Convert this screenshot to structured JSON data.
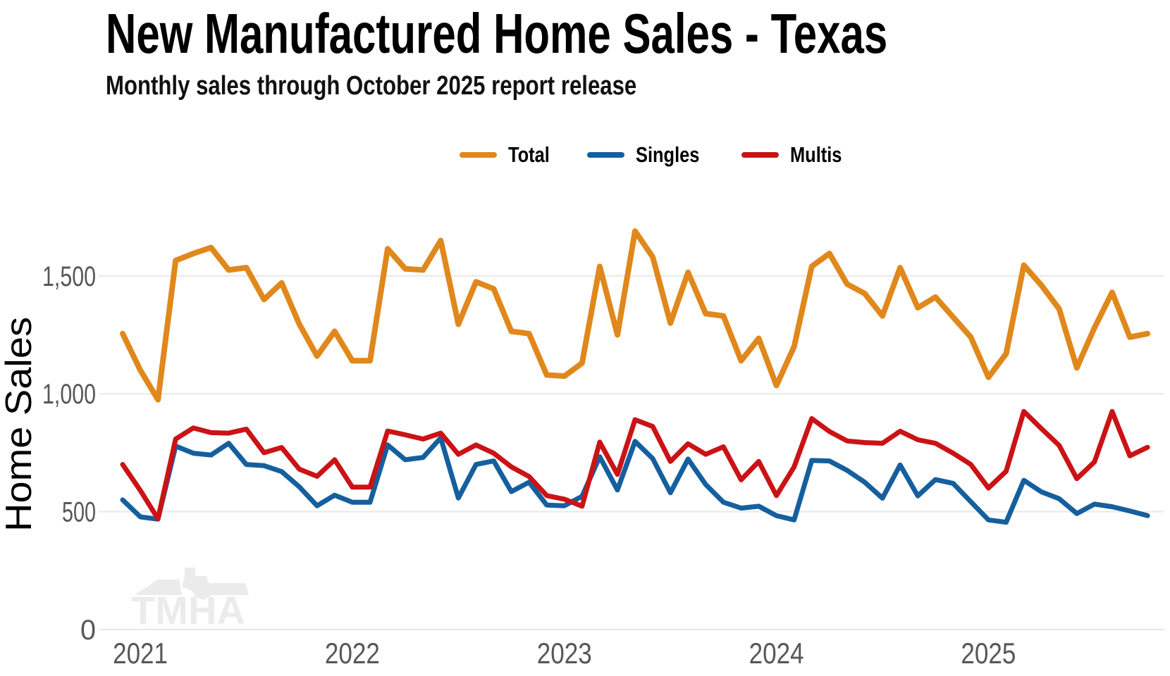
{
  "title": "New Manufactured Home Sales - Texas",
  "subtitle": "Monthly sales through October 2025 report release",
  "watermark": "TMHA",
  "colors": {
    "total": "#E0881C",
    "singles": "#155F9E",
    "multis": "#CB1316",
    "gridline": "#e8e8e8",
    "tick_text": "#575757",
    "watermark": "#ebebeb"
  },
  "chart_data": {
    "type": "line",
    "title": "New Manufactured Home Sales - Texas",
    "subtitle": "Monthly sales through October 2025 report release",
    "xlabel": "",
    "ylabel": "Home Sales",
    "ylim": [
      0,
      1790
    ],
    "grid": "horizontal",
    "legend_position": "top-center",
    "x": [
      "2020-12",
      "2021-01",
      "2021-02",
      "2021-03",
      "2021-04",
      "2021-05",
      "2021-06",
      "2021-07",
      "2021-08",
      "2021-09",
      "2021-10",
      "2021-11",
      "2021-12",
      "2022-01",
      "2022-02",
      "2022-03",
      "2022-04",
      "2022-05",
      "2022-06",
      "2022-07",
      "2022-08",
      "2022-09",
      "2022-10",
      "2022-11",
      "2022-12",
      "2023-01",
      "2023-02",
      "2023-03",
      "2023-04",
      "2023-05",
      "2023-06",
      "2023-07",
      "2023-08",
      "2023-09",
      "2023-10",
      "2023-11",
      "2023-12",
      "2024-01",
      "2024-02",
      "2024-03",
      "2024-04",
      "2024-05",
      "2024-06",
      "2024-07",
      "2024-08",
      "2024-09",
      "2024-10",
      "2024-11",
      "2024-12",
      "2025-01",
      "2025-02",
      "2025-03",
      "2025-04",
      "2025-05",
      "2025-06",
      "2025-07",
      "2025-08",
      "2025-09",
      "2025-10"
    ],
    "yticks": [
      {
        "value": 0,
        "label": "0"
      },
      {
        "value": 500,
        "label": "500"
      },
      {
        "value": 1000,
        "label": "1,000"
      },
      {
        "value": 1500,
        "label": "1,500"
      }
    ],
    "xticks": [
      {
        "label": "2021",
        "month_index": 1
      },
      {
        "label": "2022",
        "month_index": 13
      },
      {
        "label": "2023",
        "month_index": 25
      },
      {
        "label": "2024",
        "month_index": 37
      },
      {
        "label": "2025",
        "month_index": 49
      }
    ],
    "series": [
      {
        "name": "Total",
        "color": "#E0881C",
        "stroke_width": 8,
        "values": [
          1255,
          1100,
          975,
          1565,
          1595,
          1620,
          1525,
          1535,
          1400,
          1470,
          1295,
          1160,
          1265,
          1140,
          1140,
          1615,
          1530,
          1525,
          1650,
          1295,
          1475,
          1445,
          1265,
          1255,
          1080,
          1075,
          1130,
          1540,
          1250,
          1690,
          1580,
          1300,
          1515,
          1340,
          1330,
          1140,
          1235,
          1035,
          1200,
          1540,
          1595,
          1465,
          1425,
          1330,
          1535,
          1365,
          1410,
          1325,
          1240,
          1070,
          1170,
          1545,
          1460,
          1360,
          1110,
          1280,
          1430,
          1240,
          1255
        ]
      },
      {
        "name": "Singles",
        "color": "#155F9E",
        "stroke_width": 7,
        "values": [
          550,
          478,
          468,
          778,
          748,
          740,
          790,
          700,
          695,
          670,
          605,
          525,
          570,
          540,
          540,
          783,
          720,
          730,
          813,
          558,
          700,
          715,
          585,
          625,
          528,
          525,
          565,
          733,
          592,
          798,
          725,
          580,
          723,
          615,
          540,
          515,
          523,
          483,
          465,
          717,
          715,
          675,
          625,
          557,
          698,
          567,
          636,
          620,
          542,
          465,
          455,
          633,
          584,
          555,
          492,
          532,
          521,
          503,
          483
        ]
      },
      {
        "name": "Multis",
        "color": "#CB1316",
        "stroke_width": 7,
        "values": [
          700,
          590,
          470,
          808,
          855,
          835,
          833,
          850,
          750,
          772,
          680,
          650,
          720,
          604,
          604,
          842,
          826,
          808,
          833,
          743,
          783,
          748,
          690,
          649,
          568,
          553,
          523,
          795,
          658,
          890,
          861,
          713,
          788,
          743,
          775,
          635,
          713,
          568,
          690,
          895,
          840,
          800,
          793,
          790,
          841,
          805,
          790,
          748,
          700,
          600,
          671,
          925,
          852,
          781,
          640,
          711,
          925,
          737,
          773
        ]
      }
    ]
  }
}
